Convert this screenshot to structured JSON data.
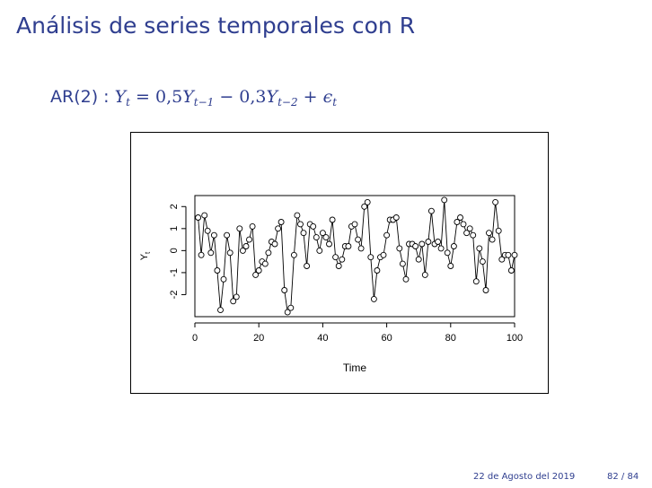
{
  "slide": {
    "title": "Análisis de series temporales con R",
    "formula": {
      "lhs": "AR(2) :",
      "y": "Y",
      "t": "t",
      "equals": "=",
      "coef1": "0,5",
      "sub1": "t−1",
      "minus": "−",
      "coef2": "0,3",
      "sub2": "t−2",
      "plus": "+",
      "eps": "ϵ"
    },
    "footer": {
      "date": "22 de Agosto del 2019",
      "page": "82 / 84"
    }
  },
  "chart_data": {
    "type": "line",
    "markers": "open-circle",
    "xlabel": "Time",
    "ylabel": "Y_t",
    "xlim": [
      0,
      100
    ],
    "ylim": [
      -3,
      2.5
    ],
    "xticks": [
      0,
      20,
      40,
      60,
      80,
      100
    ],
    "yticks": [
      -2,
      -1,
      0,
      1,
      2
    ],
    "grid": false,
    "series": [
      {
        "x": [
          1,
          2,
          3,
          4,
          5,
          6,
          7,
          8,
          9,
          10,
          11,
          12,
          13,
          14,
          15,
          16,
          17,
          18,
          19,
          20,
          21,
          22,
          23,
          24,
          25,
          26,
          27,
          28,
          29,
          30,
          31,
          32,
          33,
          34,
          35,
          36,
          37,
          38,
          39,
          40,
          41,
          42,
          43,
          44,
          45,
          46,
          47,
          48,
          49,
          50,
          51,
          52,
          53,
          54,
          55,
          56,
          57,
          58,
          59,
          60,
          61,
          62,
          63,
          64,
          65,
          66,
          67,
          68,
          69,
          70,
          71,
          72,
          73,
          74,
          75,
          76,
          77,
          78,
          79,
          80,
          81,
          82,
          83,
          84,
          85,
          86,
          87,
          88,
          89,
          90,
          91,
          92,
          93,
          94,
          95,
          96,
          97,
          98,
          99,
          100
        ],
        "values": [
          1.5,
          -0.2,
          1.6,
          0.9,
          -0.1,
          0.7,
          -0.9,
          -2.7,
          -1.3,
          0.7,
          -0.1,
          -2.3,
          -2.1,
          1.0,
          0.0,
          0.2,
          0.5,
          1.1,
          -1.1,
          -0.9,
          -0.5,
          -0.6,
          -0.1,
          0.4,
          0.3,
          1.0,
          1.3,
          -1.8,
          -2.8,
          -2.6,
          -0.2,
          1.6,
          1.2,
          0.8,
          -0.7,
          1.2,
          1.1,
          0.6,
          0.0,
          0.8,
          0.6,
          0.3,
          1.4,
          -0.3,
          -0.7,
          -0.4,
          0.2,
          0.2,
          1.1,
          1.2,
          0.5,
          0.1,
          2.0,
          2.2,
          -0.3,
          -2.2,
          -0.9,
          -0.3,
          -0.2,
          0.7,
          1.4,
          1.4,
          1.5,
          0.1,
          -0.6,
          -1.3,
          0.3,
          0.3,
          0.2,
          -0.4,
          0.3,
          -1.1,
          0.4,
          1.8,
          0.3,
          0.4,
          0.1,
          2.3,
          -0.1,
          -0.7,
          0.2,
          1.3,
          1.5,
          1.2,
          0.8,
          1.0,
          0.7,
          -1.4,
          0.1,
          -0.5,
          -1.8,
          0.8,
          0.5,
          2.2,
          0.9,
          -0.4,
          -0.2,
          -0.2,
          -0.9,
          -0.2
        ]
      }
    ]
  }
}
